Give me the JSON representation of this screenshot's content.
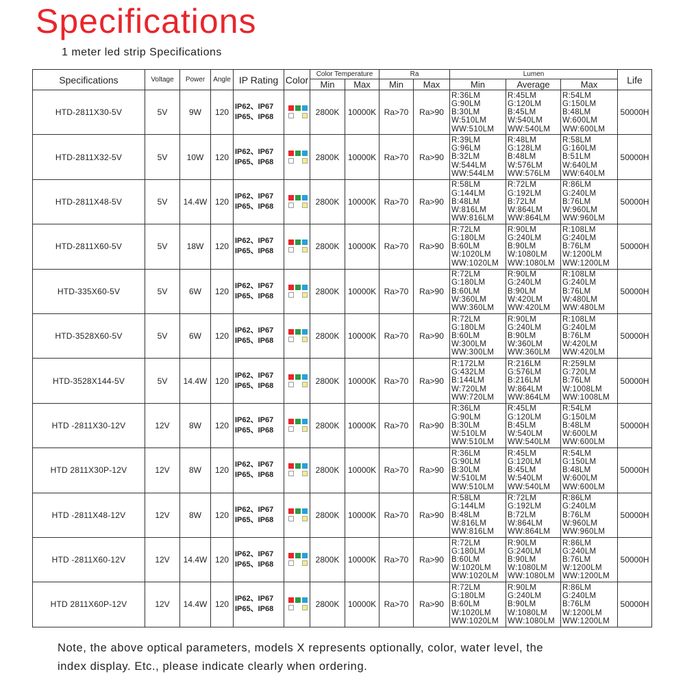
{
  "title": "Specifications",
  "subtitle": "1 meter led strip Specifications",
  "headers": {
    "spec": "Specifications",
    "voltage": "Voltage",
    "power": "Power",
    "angle": "Angle",
    "ip": "IP Rating",
    "color": "Color",
    "color_temp": "Color Temperature",
    "ra": "Ra",
    "lumen": "Lumen",
    "life": "Life",
    "min": "Min",
    "max": "Max",
    "average": "Average"
  },
  "colors": {
    "red": "#e8262c",
    "green": "#2a9a48",
    "blue": "#2aa0d8",
    "yellow": "#f5ec8a"
  },
  "rows": [
    {
      "model": "HTD-2811X30-5V",
      "voltage": "5V",
      "power": "9W",
      "angle": "120",
      "ip1": "IP62、IP67",
      "ip2": "IP65、IP68",
      "ct_min": "2800K",
      "ct_max": "10000K",
      "ra_min": "Ra>70",
      "ra_max": "Ra>90",
      "lm_min": [
        "R:36LM",
        "G:90LM",
        "B:30LM",
        "W:510LM",
        "WW:510LM"
      ],
      "lm_avg": [
        "R:45LM",
        "G:120LM",
        "B:45LM",
        "W:540LM",
        "WW:540LM"
      ],
      "lm_max": [
        "R:54LM",
        "G:150LM",
        "B:48LM",
        "W:600LM",
        "WW:600LM"
      ],
      "life": "50000H"
    },
    {
      "model": "HTD-2811X32-5V",
      "voltage": "5V",
      "power": "10W",
      "angle": "120",
      "ip1": "IP62、IP67",
      "ip2": "IP65、IP68",
      "ct_min": "2800K",
      "ct_max": "10000K",
      "ra_min": "Ra>70",
      "ra_max": "Ra>90",
      "lm_min": [
        "R:39LM",
        "G:96LM",
        "B:32LM",
        "W:544LM",
        "WW:544LM"
      ],
      "lm_avg": [
        "R:48LM",
        "G:128LM",
        "B:48LM",
        "W:576LM",
        "WW:576LM"
      ],
      "lm_max": [
        "R:58LM",
        "G:160LM",
        "B:51LM",
        "W:640LM",
        "WW:640LM"
      ],
      "life": "50000H"
    },
    {
      "model": "HTD-2811X48-5V",
      "voltage": "5V",
      "power": "14.4W",
      "angle": "120",
      "ip1": "IP62、IP67",
      "ip2": "IP65、IP68",
      "ct_min": "2800K",
      "ct_max": "10000K",
      "ra_min": "Ra>70",
      "ra_max": "Ra>90",
      "lm_min": [
        "R:58LM",
        "G:144LM",
        "B:48LM",
        "W:816LM",
        "WW:816LM"
      ],
      "lm_avg": [
        "R:72LM",
        "G:192LM",
        "B:72LM",
        "W:864LM",
        "WW:864LM"
      ],
      "lm_max": [
        "R:86LM",
        "G:240LM",
        "B:76LM",
        "W:960LM",
        "WW:960LM"
      ],
      "life": "50000H"
    },
    {
      "model": "HTD-2811X60-5V",
      "voltage": "5V",
      "power": "18W",
      "angle": "120",
      "ip1": "IP62、IP67",
      "ip2": "IP65、IP68",
      "ct_min": "2800K",
      "ct_max": "10000K",
      "ra_min": "Ra>70",
      "ra_max": "Ra>90",
      "lm_min": [
        "R:72LM",
        "G:180LM",
        "B:60LM",
        "W:1020LM",
        "WW:1020LM"
      ],
      "lm_avg": [
        "R:90LM",
        "G:240LM",
        "B:90LM",
        "W:1080LM",
        "WW:1080LM"
      ],
      "lm_max": [
        "R:108LM",
        "G:240LM",
        "B:76LM",
        "W:1200LM",
        "WW:1200LM"
      ],
      "life": "50000H"
    },
    {
      "model": "HTD-335X60-5V",
      "voltage": "5V",
      "power": "6W",
      "angle": "120",
      "ip1": "IP62、IP67",
      "ip2": "IP65、IP68",
      "ct_min": "2800K",
      "ct_max": "10000K",
      "ra_min": "Ra>70",
      "ra_max": "Ra>90",
      "lm_min": [
        "R:72LM",
        "G:180LM",
        "B:60LM",
        "W:360LM",
        "WW:360LM"
      ],
      "lm_avg": [
        "R:90LM",
        "G:240LM",
        "B:90LM",
        "W:420LM",
        "WW:420LM"
      ],
      "lm_max": [
        "R:108LM",
        "G:240LM",
        "B:76LM",
        "W:480LM",
        "WW:480LM"
      ],
      "life": "50000H"
    },
    {
      "model": "HTD-3528X60-5V",
      "voltage": "5V",
      "power": "6W",
      "angle": "120",
      "ip1": "IP62、IP67",
      "ip2": "IP65、IP68",
      "ct_min": "2800K",
      "ct_max": "10000K",
      "ra_min": "Ra>70",
      "ra_max": "Ra>90",
      "lm_min": [
        "R:72LM",
        "G:180LM",
        "B:60LM",
        "W:300LM",
        "WW:300LM"
      ],
      "lm_avg": [
        "R:90LM",
        "G:240LM",
        "B:90LM",
        "W:360LM",
        "WW:360LM"
      ],
      "lm_max": [
        "R:108LM",
        "G:240LM",
        "B:76LM",
        "W:420LM",
        "WW:420LM"
      ],
      "life": "50000H"
    },
    {
      "model": "HTD-3528X144-5V",
      "voltage": "5V",
      "power": "14.4W",
      "angle": "120",
      "ip1": "IP62、IP67",
      "ip2": "IP65、IP68",
      "ct_min": "2800K",
      "ct_max": "10000K",
      "ra_min": "Ra>70",
      "ra_max": "Ra>90",
      "lm_min": [
        "R:172LM",
        "G:432LM",
        "B:144LM",
        "W:720LM",
        "WW:720LM"
      ],
      "lm_avg": [
        "R:216LM",
        "G:576LM",
        "B:216LM",
        "W:864LM",
        "WW:864LM"
      ],
      "lm_max": [
        "R:259LM",
        "G:720LM",
        "B:76LM",
        "W:1008LM",
        "WW:1008LM"
      ],
      "life": "50000H"
    },
    {
      "model": "HTD -2811X30-12V",
      "voltage": "12V",
      "power": "8W",
      "angle": "120",
      "ip1": "IP62、IP67",
      "ip2": "IP65、IP68",
      "ct_min": "2800K",
      "ct_max": "10000K",
      "ra_min": "Ra>70",
      "ra_max": "Ra>90",
      "lm_min": [
        "R:36LM",
        "G:90LM",
        "B:30LM",
        "W:510LM",
        "WW:510LM"
      ],
      "lm_avg": [
        "R:45LM",
        "G:120LM",
        "B:45LM",
        "W:540LM",
        "WW:540LM"
      ],
      "lm_max": [
        "R:54LM",
        "G:150LM",
        "B:48LM",
        "W:600LM",
        "WW:600LM"
      ],
      "life": "50000H"
    },
    {
      "model": "HTD  2811X30P-12V",
      "voltage": "12V",
      "power": "8W",
      "angle": "120",
      "ip1": "IP62、IP67",
      "ip2": "IP65、IP68",
      "ct_min": "2800K",
      "ct_max": "10000K",
      "ra_min": "Ra>70",
      "ra_max": "Ra>90",
      "lm_min": [
        "R:36LM",
        "G:90LM",
        "B:30LM",
        "W:510LM",
        "WW:510LM"
      ],
      "lm_avg": [
        "R:45LM",
        "G:120LM",
        "B:45LM",
        "W:540LM",
        "WW:540LM"
      ],
      "lm_max": [
        "R:54LM",
        "G:150LM",
        "B:48LM",
        "W:600LM",
        "WW:600LM"
      ],
      "life": "50000H"
    },
    {
      "model": "HTD -2811X48-12V",
      "voltage": "12V",
      "power": "8W",
      "angle": "120",
      "ip1": "IP62、IP67",
      "ip2": "IP65、IP68",
      "ct_min": "2800K",
      "ct_max": "10000K",
      "ra_min": "Ra>70",
      "ra_max": "Ra>90",
      "lm_min": [
        "R:58LM",
        "G:144LM",
        "B:48LM",
        "W:816LM",
        "WW:816LM"
      ],
      "lm_avg": [
        "R:72LM",
        "G:192LM",
        "B:72LM",
        "W:864LM",
        "WW:864LM"
      ],
      "lm_max": [
        "R:86LM",
        "G:240LM",
        "B:76LM",
        "W:960LM",
        "WW:960LM"
      ],
      "life": "50000H"
    },
    {
      "model": "HTD -2811X60-12V",
      "voltage": "12V",
      "power": "14.4W",
      "angle": "120",
      "ip1": "IP62、IP67",
      "ip2": "IP65、IP68",
      "ct_min": "2800K",
      "ct_max": "10000K",
      "ra_min": "Ra>70",
      "ra_max": "Ra>90",
      "lm_min": [
        "R:72LM",
        "G:180LM",
        "B:60LM",
        "W:1020LM",
        "WW:1020LM"
      ],
      "lm_avg": [
        "R:90LM",
        "G:240LM",
        "B:90LM",
        "W:1080LM",
        "WW:1080LM"
      ],
      "lm_max": [
        "R:86LM",
        "G:240LM",
        "B:76LM",
        "W:1200LM",
        "WW:1200LM"
      ],
      "life": "50000H"
    },
    {
      "model": "HTD  2811X60P-12V",
      "voltage": "12V",
      "power": "14.4W",
      "angle": "120",
      "ip1": "IP62、IP67",
      "ip2": "IP65、IP68",
      "ct_min": "2800K",
      "ct_max": "10000K",
      "ra_min": "Ra>70",
      "ra_max": "Ra>90",
      "lm_min": [
        "R:72LM",
        "G:180LM",
        "B:60LM",
        "W:1020LM",
        "WW:1020LM"
      ],
      "lm_avg": [
        "R:90LM",
        "G:240LM",
        "B:90LM",
        "W:1080LM",
        "WW:1080LM"
      ],
      "lm_max": [
        "R:86LM",
        "G:240LM",
        "B:76LM",
        "W:1200LM",
        "WW:1200LM"
      ],
      "life": "50000H"
    }
  ],
  "note": [
    "Note, the above optical parameters, models X represents optionally, color, water level, the",
    "index display. Etc., please indicate clearly when ordering."
  ]
}
